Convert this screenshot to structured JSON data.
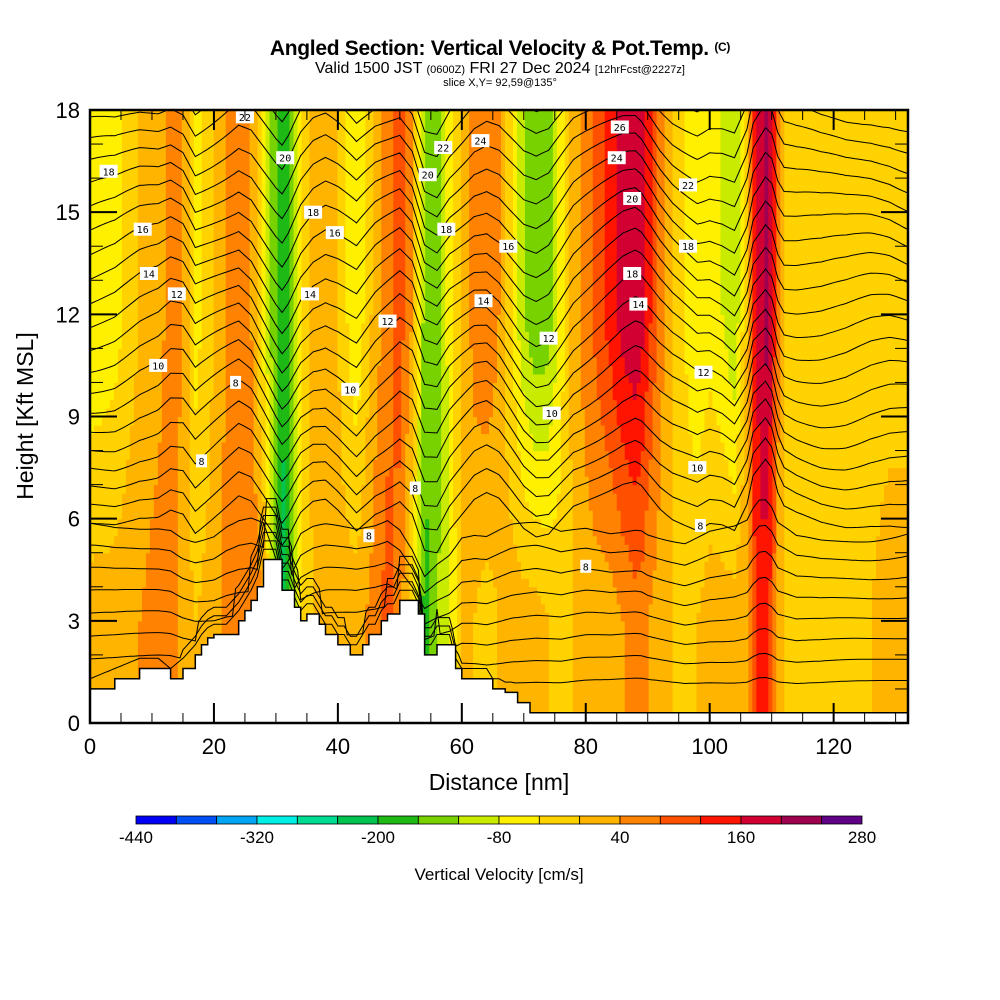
{
  "header": {
    "title": "Angled Section: Vertical Velocity & Pot.Temp.",
    "title_mark": "(C)",
    "valid_prefix": "Valid 1500 JST",
    "valid_utc": "(0600Z)",
    "valid_date": "FRI 27 Dec 2024",
    "forecast": "[12hrFcst@2227z]",
    "slice": "slice X,Y= 92,59@135°"
  },
  "chart_data": {
    "type": "heatmap",
    "title": "Angled Section: Vertical Velocity & Pot.Temp.",
    "xlabel": "Distance [nm]",
    "ylabel": "Height [Kft MSL]",
    "xlim": [
      0,
      132
    ],
    "ylim": [
      0,
      18
    ],
    "x_ticks": [
      0,
      20,
      40,
      60,
      80,
      100,
      120
    ],
    "y_ticks": [
      0,
      3,
      6,
      9,
      12,
      15,
      18
    ],
    "colorbar": {
      "title": "Vertical Velocity [cm/s]",
      "min": -440,
      "max": 280,
      "step": 40,
      "tick_labels": [
        "-440",
        "-320",
        "-200",
        "-80",
        "40",
        "160",
        "280"
      ],
      "colors": [
        "#0000f5",
        "#0050f5",
        "#00a5f5",
        "#00f0e6",
        "#00dc91",
        "#00c350",
        "#1eb914",
        "#78d200",
        "#c8eb00",
        "#fff000",
        "#ffd200",
        "#ffb400",
        "#ff8200",
        "#ff5000",
        "#ff1400",
        "#d20032",
        "#a00050",
        "#5f0087"
      ]
    },
    "vertical_velocity_columns": {
      "distance_nm": [
        0,
        4,
        8,
        11,
        13,
        15,
        17,
        20,
        22,
        24,
        26,
        28,
        30,
        31,
        32,
        34,
        36,
        38,
        40,
        43,
        46,
        48,
        50,
        52,
        54,
        56,
        58,
        60,
        62,
        64,
        66,
        68,
        70,
        72,
        74,
        76,
        78,
        80,
        82,
        84,
        86,
        88,
        89,
        90,
        92,
        94,
        96,
        98,
        100,
        102,
        104,
        106,
        107,
        108,
        109,
        110,
        111,
        112,
        114,
        118,
        122,
        126,
        129,
        132
      ],
      "upper_cm_s": [
        -80,
        -60,
        0,
        20,
        60,
        40,
        -60,
        0,
        40,
        80,
        40,
        -60,
        -160,
        -200,
        -160,
        -40,
        20,
        40,
        0,
        -80,
        20,
        60,
        100,
        40,
        -140,
        -160,
        -60,
        0,
        60,
        80,
        40,
        -40,
        -120,
        -160,
        -140,
        -60,
        20,
        60,
        100,
        140,
        180,
        200,
        180,
        140,
        60,
        0,
        -40,
        -80,
        -60,
        -80,
        -120,
        0,
        140,
        180,
        220,
        180,
        60,
        0,
        -20,
        -40,
        -40,
        -20,
        -20,
        -40
      ],
      "lower_cm_s": [
        20,
        20,
        40,
        60,
        60,
        20,
        0,
        20,
        60,
        80,
        80,
        40,
        -160,
        -220,
        -180,
        -40,
        0,
        20,
        20,
        20,
        60,
        100,
        60,
        -40,
        -180,
        -120,
        -80,
        0,
        0,
        -20,
        0,
        20,
        20,
        20,
        0,
        -20,
        0,
        20,
        20,
        20,
        40,
        60,
        60,
        40,
        20,
        0,
        -20,
        0,
        20,
        20,
        20,
        40,
        100,
        140,
        140,
        100,
        20,
        0,
        -40,
        -40,
        -20,
        0,
        20,
        40
      ]
    },
    "terrain_kft": {
      "distance_nm": [
        0,
        4,
        8,
        11,
        13,
        15,
        17,
        18,
        19,
        20,
        21,
        22,
        24,
        25,
        26,
        27,
        28,
        29,
        30,
        31,
        32,
        33,
        34,
        35,
        36,
        37,
        38,
        39,
        40,
        41,
        42,
        43,
        44,
        45,
        46,
        47,
        48,
        49,
        50,
        51,
        52,
        53,
        54,
        55,
        56,
        57,
        58,
        59,
        60,
        61,
        62,
        63,
        64,
        65,
        66,
        67,
        68,
        69,
        70,
        71,
        72,
        132
      ],
      "height": [
        1.0,
        1.3,
        1.6,
        1.6,
        1.3,
        1.6,
        2.0,
        2.3,
        2.5,
        2.6,
        2.6,
        2.6,
        3.0,
        3.3,
        3.6,
        4.0,
        4.8,
        4.8,
        4.8,
        3.9,
        3.9,
        3.4,
        3.0,
        3.2,
        3.2,
        2.9,
        2.6,
        2.6,
        2.3,
        2.3,
        2.0,
        2.0,
        2.3,
        2.6,
        2.6,
        3.0,
        3.2,
        3.2,
        3.6,
        3.6,
        3.6,
        3.2,
        2.0,
        2.0,
        2.3,
        2.3,
        2.3,
        1.6,
        1.3,
        1.3,
        1.3,
        1.3,
        1.3,
        1.0,
        1.0,
        0.9,
        0.9,
        0.6,
        0.6,
        0.3,
        0.3,
        0.3
      ]
    },
    "theta_contours_celsius": {
      "levels": [
        6,
        8,
        10,
        12,
        14,
        16,
        18,
        20,
        22,
        24,
        26
      ],
      "labels": [
        {
          "text": "22",
          "x": 25,
          "y": 17.8
        },
        {
          "text": "20",
          "x": 31.5,
          "y": 16.6
        },
        {
          "text": "18",
          "x": 3,
          "y": 16.2
        },
        {
          "text": "18",
          "x": 36,
          "y": 15.0
        },
        {
          "text": "16",
          "x": 8.5,
          "y": 14.5
        },
        {
          "text": "16",
          "x": 39.5,
          "y": 14.4
        },
        {
          "text": "14",
          "x": 9.5,
          "y": 13.2
        },
        {
          "text": "14",
          "x": 35.5,
          "y": 12.6
        },
        {
          "text": "12",
          "x": 14,
          "y": 12.6
        },
        {
          "text": "22",
          "x": 57,
          "y": 16.9
        },
        {
          "text": "20",
          "x": 54.5,
          "y": 16.1
        },
        {
          "text": "18",
          "x": 57.5,
          "y": 14.5
        },
        {
          "text": "24",
          "x": 63,
          "y": 17.1
        },
        {
          "text": "26",
          "x": 85.5,
          "y": 17.5
        },
        {
          "text": "24",
          "x": 85,
          "y": 16.6
        },
        {
          "text": "20",
          "x": 87.5,
          "y": 15.4
        },
        {
          "text": "16",
          "x": 67.5,
          "y": 14.0
        },
        {
          "text": "14",
          "x": 63.5,
          "y": 12.4
        },
        {
          "text": "22",
          "x": 96.5,
          "y": 15.8
        },
        {
          "text": "18",
          "x": 96.5,
          "y": 14.0
        },
        {
          "text": "18",
          "x": 87.5,
          "y": 13.2
        },
        {
          "text": "14",
          "x": 88.5,
          "y": 12.3
        },
        {
          "text": "12",
          "x": 74,
          "y": 11.3
        },
        {
          "text": "12",
          "x": 99,
          "y": 10.3
        },
        {
          "text": "10",
          "x": 74.5,
          "y": 9.1
        },
        {
          "text": "10",
          "x": 98,
          "y": 7.5
        },
        {
          "text": "8",
          "x": 98.5,
          "y": 5.8
        },
        {
          "text": "8",
          "x": 80,
          "y": 4.6
        },
        {
          "text": "12",
          "x": 48,
          "y": 11.8
        },
        {
          "text": "10",
          "x": 11,
          "y": 10.5
        },
        {
          "text": "10",
          "x": 42,
          "y": 9.8
        },
        {
          "text": "8",
          "x": 23.5,
          "y": 10.0
        },
        {
          "text": "8",
          "x": 18,
          "y": 7.7
        },
        {
          "text": "8",
          "x": 52.5,
          "y": 6.9
        },
        {
          "text": "8",
          "x": 45,
          "y": 5.5
        }
      ]
    }
  }
}
